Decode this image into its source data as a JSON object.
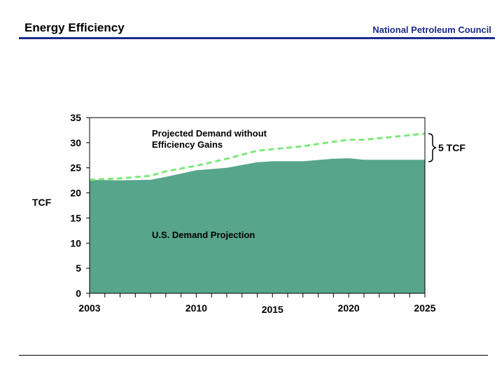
{
  "header": {
    "title": "Energy Efficiency",
    "organization": "National Petroleum Council"
  },
  "chart_data": {
    "type": "area",
    "ylabel": "TCF",
    "ylim": [
      0,
      35
    ],
    "yticks": [
      0,
      5,
      10,
      15,
      20,
      25,
      30,
      35
    ],
    "xlim": [
      2003,
      2025
    ],
    "xtick_labels": [
      "2003",
      "2010",
      "2015",
      "2020",
      "2025"
    ],
    "grid": false,
    "series": [
      {
        "name": "U.S. Demand Projection",
        "style": "filled area",
        "color": "#57a58b",
        "x": [
          2003,
          2005,
          2007,
          2008,
          2010,
          2012,
          2014,
          2015,
          2017,
          2019,
          2020,
          2021,
          2023,
          2025
        ],
        "y": [
          22.6,
          22.5,
          22.6,
          23.2,
          24.5,
          25.0,
          26.1,
          26.3,
          26.3,
          26.8,
          26.9,
          26.6,
          26.6,
          26.6
        ]
      },
      {
        "name": "Projected Demand without Efficiency Gains",
        "style": "dashed line",
        "color": "#7de87d",
        "x": [
          2003,
          2005,
          2007,
          2008,
          2010,
          2012,
          2014,
          2015,
          2017,
          2019,
          2020,
          2021,
          2023,
          2025
        ],
        "y": [
          22.6,
          22.9,
          23.4,
          24.3,
          25.4,
          26.8,
          28.4,
          28.7,
          29.3,
          30.2,
          30.6,
          30.6,
          31.2,
          31.8
        ]
      }
    ],
    "annotations": [
      "Projected Demand without Efficiency Gains",
      "U.S. Demand Projection",
      "5 TCF"
    ]
  }
}
